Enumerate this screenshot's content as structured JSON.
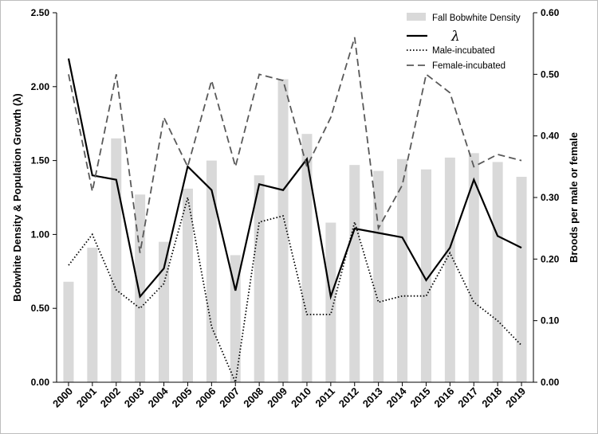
{
  "chart_data": {
    "type": "bar+line",
    "categories": [
      "2000",
      "2001",
      "2002",
      "2003",
      "2004",
      "2005",
      "2006",
      "2007",
      "2008",
      "2009",
      "2010",
      "2011",
      "2012",
      "2013",
      "2014",
      "2015",
      "2016",
      "2017",
      "2018",
      "2019"
    ],
    "left_axis": {
      "label": "Bobwhite Density & Population Growth (λ)",
      "range": [
        0,
        2.5
      ],
      "ticks": [
        "0.00",
        "0.50",
        "1.00",
        "1.50",
        "2.00",
        "2.50"
      ]
    },
    "right_axis": {
      "label": "Broods per male or female",
      "range": [
        0,
        0.6
      ],
      "ticks": [
        "0.00",
        "0.10",
        "0.20",
        "0.30",
        "0.40",
        "0.50",
        "0.60"
      ]
    },
    "series": [
      {
        "name": "Fall Bobwhite Density",
        "kind": "bar",
        "axis": "left",
        "color": "#d9d9d9",
        "values": [
          0.68,
          0.91,
          1.65,
          1.27,
          0.95,
          1.31,
          1.5,
          0.86,
          1.4,
          2.05,
          1.68,
          1.08,
          1.47,
          1.43,
          1.51,
          1.44,
          1.52,
          1.55,
          1.49,
          1.39
        ]
      },
      {
        "name": "λ",
        "kind": "line",
        "axis": "left",
        "color": "#000000",
        "style": "solid",
        "values": [
          2.19,
          1.4,
          1.37,
          0.58,
          0.77,
          1.46,
          1.3,
          0.62,
          1.34,
          1.3,
          1.51,
          0.58,
          1.04,
          1.01,
          0.98,
          0.69,
          0.91,
          1.37,
          0.99,
          0.91
        ]
      },
      {
        "name": "Male-incubated",
        "kind": "line",
        "axis": "right",
        "color": "#000000",
        "style": "dotted",
        "values": [
          0.19,
          0.24,
          0.15,
          0.12,
          0.16,
          0.3,
          0.09,
          0.0,
          0.26,
          0.27,
          0.11,
          0.11,
          0.26,
          0.13,
          0.14,
          0.14,
          0.21,
          0.13,
          0.1,
          0.06
        ]
      },
      {
        "name": "Female-incubated",
        "kind": "line",
        "axis": "right",
        "color": "#595959",
        "style": "dashed",
        "values": [
          0.5,
          0.31,
          0.5,
          0.21,
          0.43,
          0.35,
          0.49,
          0.35,
          0.5,
          0.49,
          0.35,
          0.43,
          0.56,
          0.25,
          0.32,
          0.5,
          0.47,
          0.35,
          0.37,
          0.36
        ]
      }
    ],
    "legend": [
      "Fall Bobwhite Density",
      "λ",
      "Male-incubated",
      "Female-incubated"
    ],
    "legend_position": "top-right",
    "grid": false
  }
}
